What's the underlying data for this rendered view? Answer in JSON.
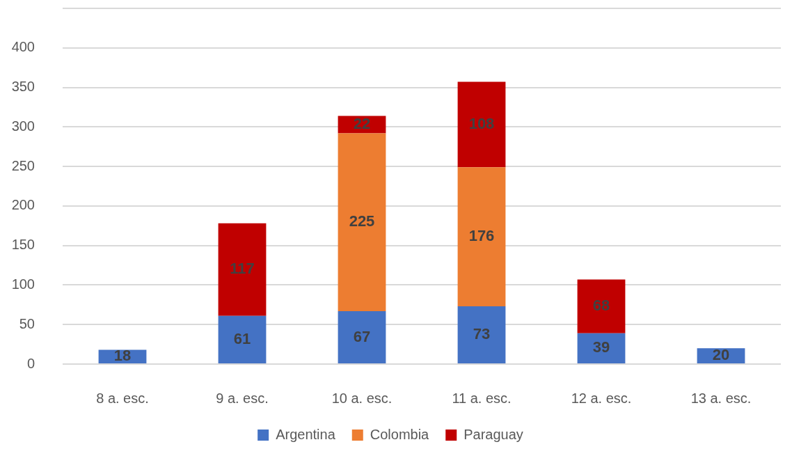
{
  "chart_data": {
    "type": "bar",
    "stacked": true,
    "categories": [
      "8 a. esc.",
      "9 a. esc.",
      "10 a. esc.",
      "11 a. esc.",
      "12 a. esc.",
      "13 a. esc."
    ],
    "series": [
      {
        "name": "Argentina",
        "color": "#4472c4",
        "values": [
          18,
          61,
          67,
          73,
          39,
          20
        ]
      },
      {
        "name": "Colombia",
        "color": "#ed7d31",
        "values": [
          null,
          null,
          225,
          176,
          null,
          null
        ]
      },
      {
        "name": "Paraguay",
        "color": "#c00000",
        "values": [
          null,
          117,
          22,
          108,
          68,
          null
        ]
      }
    ],
    "ylim": [
      0,
      450
    ],
    "yticks": [
      0,
      50,
      100,
      150,
      200,
      250,
      300,
      350,
      400,
      {
        "value": 450,
        "label": null
      }
    ],
    "grid": "y",
    "legend": "bottom",
    "data_labels": true
  }
}
